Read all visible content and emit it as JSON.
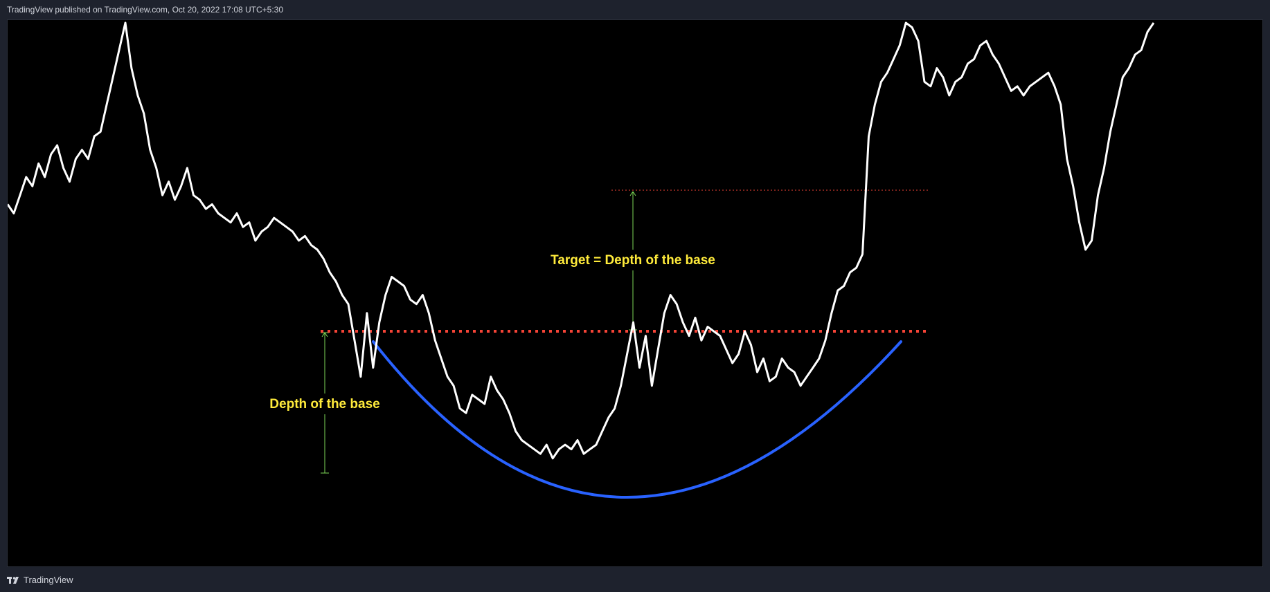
{
  "header": {
    "published_text": "TradingView published on TradingView.com, Oct 20, 2022 17:08 UTC+5:30"
  },
  "footer": {
    "brand_label": "TradingView",
    "brand_icon": "tradingview-logo-icon"
  },
  "colors": {
    "background": "#000000",
    "frame": "#1e222d",
    "price_line": "#ffffff",
    "base_curve": "#2962ff",
    "resistance_line": "#f44336",
    "measure_lines": "#7ed957",
    "annotation_text": "#ffeb3b"
  },
  "chart_data": {
    "type": "line",
    "title": "",
    "xlabel": "",
    "ylabel": "",
    "grid": false,
    "legend": "none",
    "ylim": [
      0,
      100
    ],
    "series": [
      {
        "values": [
          60,
          58,
          62,
          66,
          64,
          69,
          66,
          71,
          73,
          68,
          65,
          70,
          72,
          70,
          75,
          76,
          82,
          88,
          94,
          100,
          90,
          84,
          80,
          72,
          68,
          62,
          65,
          61,
          64,
          68,
          62,
          61,
          59,
          60,
          58,
          57,
          56,
          58,
          55,
          56,
          52,
          54,
          55,
          57,
          56,
          55,
          54,
          52,
          53,
          51,
          50,
          48,
          45,
          43,
          40,
          38,
          30,
          22,
          36,
          24,
          34,
          40,
          44,
          43,
          42,
          39,
          38,
          40,
          36,
          30,
          26,
          22,
          20,
          15,
          14,
          18,
          17,
          16,
          22,
          19,
          17,
          14,
          10,
          8,
          7,
          6,
          5,
          7,
          4,
          6,
          7,
          6,
          8,
          5,
          6,
          7,
          10,
          13,
          15,
          20,
          27,
          34,
          24,
          31,
          20,
          28,
          36,
          40,
          38,
          34,
          31,
          35,
          30,
          33,
          32,
          31,
          28,
          25,
          27,
          32,
          29,
          23,
          26,
          21,
          22,
          26,
          24,
          23,
          20,
          22,
          24,
          26,
          30,
          36,
          41,
          42,
          45,
          46,
          49,
          75,
          82,
          87,
          89,
          92,
          95,
          100,
          99,
          96,
          87,
          86,
          90,
          88,
          84,
          87,
          88,
          91,
          92,
          95,
          96,
          93,
          91,
          88,
          85,
          86,
          84,
          86,
          87,
          88,
          89,
          86,
          82,
          70,
          64,
          56,
          50,
          52,
          62,
          68,
          76,
          82,
          88,
          90,
          93,
          94,
          98,
          100
        ]
      }
    ],
    "annotations": [
      {
        "id": "depth",
        "label": "Depth of the base"
      },
      {
        "id": "target",
        "label": "Target = Depth of the base"
      }
    ]
  }
}
